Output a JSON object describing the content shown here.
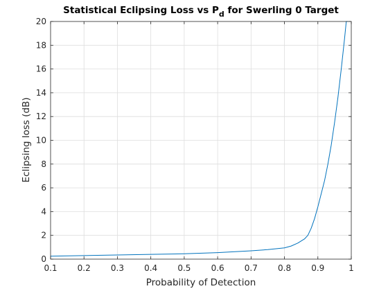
{
  "chart_data": {
    "type": "line",
    "title": "Statistical Eclipsing Loss vs P",
    "title_subscript": "d",
    "title_suffix": " for Swerling 0 Target",
    "xlabel": "Probability of Detection",
    "ylabel": "Eclipsing loss (dB)",
    "xlim": [
      0.1,
      1.0
    ],
    "ylim": [
      0,
      20
    ],
    "xticks": [
      0.1,
      0.2,
      0.3,
      0.4,
      0.5,
      0.6,
      0.7,
      0.8,
      0.9,
      1
    ],
    "xtick_labels": [
      "0.1",
      "0.2",
      "0.3",
      "0.4",
      "0.5",
      "0.6",
      "0.7",
      "0.8",
      "0.9",
      "1"
    ],
    "yticks": [
      0,
      2,
      4,
      6,
      8,
      10,
      12,
      14,
      16,
      18,
      20
    ],
    "ytick_labels": [
      "0",
      "2",
      "4",
      "6",
      "8",
      "10",
      "12",
      "14",
      "16",
      "18",
      "20"
    ],
    "grid": true,
    "legend": "none",
    "line_color": "#0072bd",
    "series": [
      {
        "x": [
          0.1,
          0.2,
          0.3,
          0.4,
          0.5,
          0.6,
          0.7,
          0.75,
          0.8,
          0.82,
          0.84,
          0.86,
          0.87,
          0.88,
          0.89,
          0.9,
          0.91,
          0.92,
          0.93,
          0.94,
          0.95,
          0.96,
          0.97,
          0.98,
          0.985,
          0.99
        ],
        "y": [
          0.25,
          0.3,
          0.35,
          0.4,
          0.45,
          0.55,
          0.7,
          0.8,
          0.95,
          1.1,
          1.35,
          1.7,
          2.0,
          2.6,
          3.4,
          4.4,
          5.5,
          6.6,
          8.0,
          9.6,
          11.5,
          13.6,
          16.0,
          18.6,
          20.0,
          20.0
        ]
      }
    ]
  }
}
